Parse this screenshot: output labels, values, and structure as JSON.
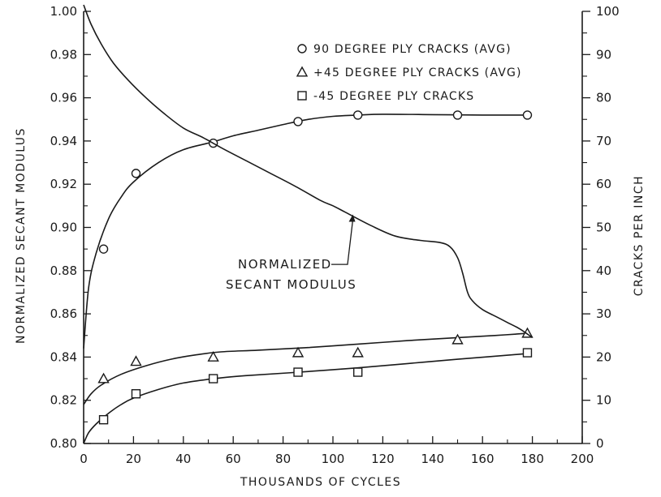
{
  "chart_data": {
    "type": "line",
    "x_axis": {
      "label": "THOUSANDS OF CYCLES",
      "range": [
        0,
        200
      ],
      "ticks": [
        0,
        20,
        40,
        60,
        80,
        100,
        120,
        140,
        160,
        180,
        200
      ],
      "tick_labels": [
        "0",
        "20",
        "40",
        "60",
        "80",
        "100",
        "120",
        "140",
        "160",
        "180",
        "200"
      ]
    },
    "y_axis_left": {
      "label": "NORMALIZED SECANT MODULUS",
      "range": [
        0.8,
        1.0
      ],
      "ticks": [
        0.8,
        0.82,
        0.84,
        0.86,
        0.88,
        0.9,
        0.92,
        0.94,
        0.96,
        0.98,
        1.0
      ],
      "tick_labels": [
        "0.80",
        "0.82",
        "0.84",
        "0.86",
        "0.88",
        "0.90",
        "0.92",
        "0.94",
        "0.96",
        "0.98",
        "1.00"
      ]
    },
    "y_axis_right": {
      "label": "CRACKS PER INCH",
      "range": [
        0,
        100
      ],
      "ticks": [
        0,
        10,
        20,
        30,
        40,
        50,
        60,
        70,
        80,
        90,
        100
      ],
      "tick_labels": [
        "0",
        "10",
        "20",
        "30",
        "40",
        "50",
        "60",
        "70",
        "80",
        "90",
        "100"
      ]
    },
    "grid": false,
    "legend_position": "top-right",
    "series": [
      {
        "name": "90 DEGREE PLY CRACKS (AVG)",
        "marker": "circle",
        "axis": "right",
        "points": [
          [
            8,
            45
          ],
          [
            21,
            62.5
          ],
          [
            52,
            69.5
          ],
          [
            86,
            74.5
          ],
          [
            110,
            76
          ],
          [
            150,
            76
          ],
          [
            178,
            76
          ]
        ],
        "fit_curve": [
          [
            0,
            22
          ],
          [
            2,
            36
          ],
          [
            5,
            44
          ],
          [
            10,
            52
          ],
          [
            15,
            57
          ],
          [
            20,
            60.5
          ],
          [
            30,
            65
          ],
          [
            40,
            68
          ],
          [
            52,
            69.8
          ],
          [
            60,
            71.2
          ],
          [
            70,
            72.5
          ],
          [
            80,
            73.8
          ],
          [
            90,
            75
          ],
          [
            100,
            75.7
          ],
          [
            110,
            76
          ],
          [
            120,
            76.2
          ],
          [
            140,
            76.1
          ],
          [
            160,
            76
          ],
          [
            178,
            76
          ]
        ]
      },
      {
        "name": "+45 DEGREE PLY CRACKS (AVG)",
        "marker": "triangle",
        "axis": "right",
        "points": [
          [
            8,
            15
          ],
          [
            21,
            19
          ],
          [
            52,
            20
          ],
          [
            86,
            21
          ],
          [
            110,
            21
          ],
          [
            150,
            24
          ],
          [
            178,
            25.5
          ]
        ],
        "fit_curve": [
          [
            0,
            9
          ],
          [
            3,
            11.5
          ],
          [
            7,
            13.5
          ],
          [
            15,
            16
          ],
          [
            25,
            18
          ],
          [
            35,
            19.5
          ],
          [
            45,
            20.5
          ],
          [
            55,
            21.2
          ],
          [
            70,
            21.6
          ],
          [
            90,
            22.2
          ],
          [
            110,
            23
          ],
          [
            130,
            23.8
          ],
          [
            150,
            24.5
          ],
          [
            165,
            25
          ],
          [
            178,
            25.5
          ]
        ]
      },
      {
        "name": "-45 DEGREE PLY CRACKS",
        "marker": "square",
        "axis": "right",
        "points": [
          [
            8,
            5.5
          ],
          [
            21,
            11.5
          ],
          [
            52,
            15
          ],
          [
            86,
            16.5
          ],
          [
            110,
            16.5
          ],
          [
            178,
            21
          ]
        ],
        "fit_curve": [
          [
            0,
            0
          ],
          [
            2,
            2.5
          ],
          [
            5,
            4.5
          ],
          [
            10,
            7
          ],
          [
            15,
            9
          ],
          [
            20,
            10.5
          ],
          [
            30,
            12.5
          ],
          [
            40,
            14
          ],
          [
            52,
            15
          ],
          [
            65,
            15.7
          ],
          [
            86,
            16.5
          ],
          [
            110,
            17.5
          ],
          [
            130,
            18.5
          ],
          [
            150,
            19.5
          ],
          [
            178,
            20.8
          ]
        ]
      },
      {
        "name": "NORMALIZED SECANT MODULUS",
        "marker": "none",
        "axis": "left",
        "curve": [
          [
            0,
            1.003
          ],
          [
            3,
            0.994
          ],
          [
            7,
            0.985
          ],
          [
            12,
            0.976
          ],
          [
            18,
            0.968
          ],
          [
            25,
            0.96
          ],
          [
            32,
            0.953
          ],
          [
            40,
            0.946
          ],
          [
            48,
            0.9415
          ],
          [
            55,
            0.937
          ],
          [
            65,
            0.931
          ],
          [
            75,
            0.925
          ],
          [
            85,
            0.919
          ],
          [
            95,
            0.9125
          ],
          [
            100,
            0.91
          ],
          [
            105,
            0.907
          ],
          [
            115,
            0.901
          ],
          [
            125,
            0.896
          ],
          [
            135,
            0.894
          ],
          [
            143,
            0.893
          ],
          [
            147,
            0.891
          ],
          [
            150,
            0.886
          ],
          [
            152,
            0.879
          ],
          [
            154,
            0.87
          ],
          [
            156,
            0.866
          ],
          [
            160,
            0.862
          ],
          [
            165,
            0.859
          ],
          [
            170,
            0.856
          ],
          [
            175,
            0.853
          ],
          [
            180,
            0.849
          ]
        ]
      }
    ],
    "annotations": [
      {
        "text_lines": [
          "NORMALIZED",
          "SECANT MODULUS"
        ],
        "x": 57,
        "y": 0.881,
        "arrow_to": [
          108,
          0.906
        ]
      }
    ]
  }
}
